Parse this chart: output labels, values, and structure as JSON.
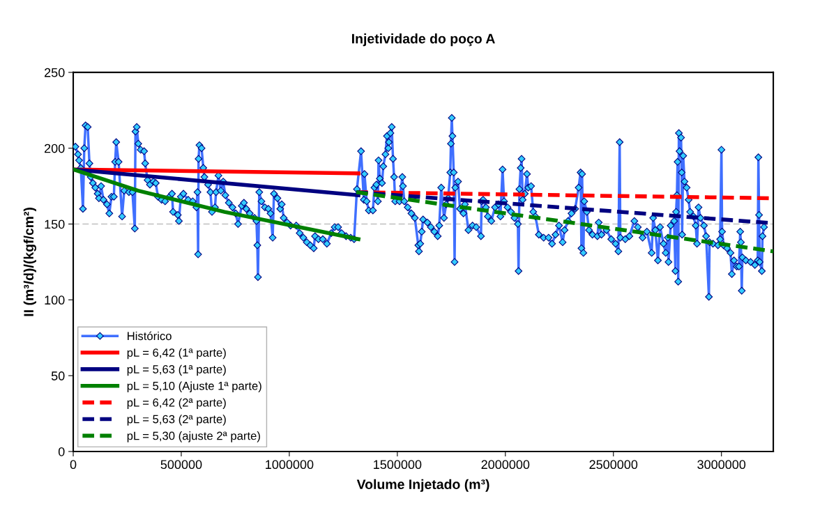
{
  "chart_data": {
    "type": "line",
    "title": "Injetividade do poço A",
    "xlabel": "Volume Injetado (m³)",
    "ylabel": "II (m³/d)/(kgf/cm²)",
    "xlim": [
      0,
      3240000
    ],
    "xticks": [
      0,
      500000,
      1000000,
      1500000,
      2000000,
      2500000,
      3000000
    ],
    "ylim": [
      0,
      250
    ],
    "yticks": [
      0,
      50,
      100,
      150,
      200,
      250
    ],
    "grid": false,
    "legend": "bottom left",
    "ref_lines": [
      {
        "axis": "y",
        "value": 150,
        "color": "#a6a6a6",
        "line_style": "dashed"
      }
    ],
    "series": [
      {
        "name": "Histórico",
        "color": "#3f6fff",
        "marker": "diamond",
        "line_style": "solid",
        "x": [
          10000,
          22000,
          27000,
          35000,
          45000,
          51000,
          57000,
          67000,
          75000,
          81000,
          91000,
          102000,
          113000,
          119000,
          129000,
          140000,
          156000,
          167000,
          177000,
          188000,
          194000,
          199000,
          210000,
          226000,
          236000,
          258000,
          274000,
          285000,
          288000,
          294000,
          301000,
          312000,
          328000,
          333000,
          344000,
          355000,
          371000,
          382000,
          392000,
          409000,
          425000,
          445000,
          457000,
          462000,
          484000,
          489000,
          498000,
          510000,
          532000,
          553000,
          570000,
          575000,
          578000,
          580000,
          584000,
          594000,
          602000,
          607000,
          624000,
          635000,
          642000,
          656000,
          661000,
          672000,
          683000,
          694000,
          704000,
          720000,
          737000,
          752000,
          763000,
          780000,
          790000,
          801000,
          817000,
          839000,
          848000,
          852000,
          855000,
          861000,
          871000,
          887000,
          903000,
          913000,
          923000,
          929000,
          945000,
          958000,
          965000,
          974000,
          990000,
          1006000,
          1032000,
          1048000,
          1065000,
          1081000,
          1097000,
          1113000,
          1119000,
          1135000,
          1155000,
          1174000,
          1194000,
          1210000,
          1226000,
          1242000,
          1263000,
          1284000,
          1300000,
          1313000,
          1332000,
          1345000,
          1348000,
          1358000,
          1368000,
          1387000,
          1394000,
          1403000,
          1410000,
          1413000,
          1419000,
          1429000,
          1435000,
          1445000,
          1452000,
          1458000,
          1461000,
          1468000,
          1474000,
          1480000,
          1485000,
          1490000,
          1510000,
          1523000,
          1526000,
          1532000,
          1548000,
          1565000,
          1581000,
          1597000,
          1600000,
          1606000,
          1613000,
          1619000,
          1639000,
          1655000,
          1671000,
          1687000,
          1694000,
          1703000,
          1716000,
          1726000,
          1735000,
          1745000,
          1748000,
          1752000,
          1755000,
          1761000,
          1765000,
          1768000,
          1781000,
          1790000,
          1806000,
          1813000,
          1829000,
          1848000,
          1865000,
          1887000,
          1890000,
          1897000,
          1910000,
          1919000,
          1935000,
          1952000,
          1968000,
          1977000,
          1987000,
          1994000,
          2010000,
          2026000,
          2042000,
          2058000,
          2061000,
          2065000,
          2071000,
          2075000,
          2080000,
          2090000,
          2100000,
          2106000,
          2119000,
          2129000,
          2139000,
          2155000,
          2177000,
          2200000,
          2216000,
          2232000,
          2248000,
          2265000,
          2274000,
          2290000,
          2306000,
          2323000,
          2339000,
          2348000,
          2352000,
          2355000,
          2361000,
          2365000,
          2377000,
          2387000,
          2403000,
          2426000,
          2432000,
          2445000,
          2468000,
          2490000,
          2510000,
          2523000,
          2529000,
          2532000,
          2555000,
          2574000,
          2597000,
          2613000,
          2635000,
          2655000,
          2677000,
          2684000,
          2694000,
          2706000,
          2716000,
          2732000,
          2742000,
          2752000,
          2755000,
          2765000,
          2781000,
          2787000,
          2790000,
          2794000,
          2797000,
          2800000,
          2803000,
          2806000,
          2813000,
          2816000,
          2818000,
          2823000,
          2829000,
          2839000,
          2848000,
          2855000,
          2871000,
          2881000,
          2887000,
          2894000,
          2903000,
          2919000,
          2929000,
          2942000,
          2945000,
          2961000,
          2984000,
          2994000,
          3000000,
          3003000,
          3010000,
          3026000,
          3042000,
          3048000,
          3058000,
          3071000,
          3081000,
          3087000,
          3090000,
          3094000,
          3097000,
          3113000,
          3135000,
          3155000,
          3168000,
          3171000,
          3174000,
          3177000,
          3187000,
          3190000,
          3197000
        ],
        "values": [
          201,
          196,
          192,
          187,
          160,
          200,
          215,
          214,
          190,
          181,
          177,
          174,
          170,
          167,
          175,
          166,
          163,
          157,
          168,
          168,
          191,
          204,
          191,
          155,
          172,
          171,
          171,
          147,
          211,
          214,
          203,
          199,
          198,
          190,
          179,
          176,
          178,
          177,
          168,
          166,
          165,
          168,
          170,
          158,
          156,
          152,
          168,
          170,
          166,
          165,
          161,
          171,
          130,
          193,
          202,
          200,
          187,
          181,
          176,
          171,
          158,
          161,
          171,
          182,
          172,
          178,
          169,
          164,
          161,
          157,
          150,
          162,
          164,
          160,
          157,
          154,
          152,
          136,
          115,
          171,
          165,
          161,
          160,
          157,
          141,
          170,
          167,
          160,
          163,
          154,
          151,
          149,
          149,
          144,
          141,
          138,
          136,
          134,
          142,
          140,
          140,
          137,
          144,
          148,
          148,
          144,
          142,
          141,
          140,
          173,
          198,
          166,
          183,
          165,
          159,
          159,
          174,
          176,
          165,
          192,
          180,
          177,
          188,
          196,
          208,
          200,
          204,
          210,
          214,
          193,
          181,
          165,
          165,
          181,
          175,
          165,
          161,
          157,
          154,
          136,
          132,
          137,
          145,
          153,
          151,
          148,
          145,
          142,
          149,
          174,
          154,
          163,
          167,
          184,
          203,
          220,
          208,
          184,
          125,
          174,
          178,
          160,
          157,
          163,
          146,
          149,
          148,
          142,
          165,
          166,
          161,
          155,
          152,
          161,
          163,
          155,
          186,
          165,
          161,
          158,
          154,
          150,
          119,
          173,
          187,
          193,
          166,
          170,
          183,
          174,
          175,
          158,
          155,
          143,
          141,
          141,
          137,
          143,
          149,
          138,
          146,
          152,
          157,
          160,
          174,
          184,
          134,
          183,
          131,
          165,
          158,
          146,
          143,
          142,
          151,
          143,
          146,
          140,
          137,
          132,
          204,
          141,
          140,
          142,
          152,
          148,
          141,
          145,
          131,
          154,
          146,
          126,
          148,
          137,
          131,
          141,
          125,
          149,
          152,
          119,
          158,
          169,
          191,
          112,
          210,
          198,
          207,
          184,
          143,
          195,
          178,
          174,
          166,
          158,
          155,
          149,
          137,
          161,
          154,
          149,
          142,
          102,
          138,
          137,
          136,
          140,
          199,
          145,
          136,
          134,
          131,
          117,
          126,
          122,
          122,
          145,
          138,
          106,
          128,
          126,
          125,
          123,
          126,
          194,
          156,
          125,
          119,
          142,
          148
        ]
      },
      {
        "name": "pL = 6,42 (1ª parte)",
        "color": "#ff0000",
        "line_style": "solid",
        "x": [
          0,
          1320000
        ],
        "values": [
          186,
          183.4
        ]
      },
      {
        "name": "pL = 5,63 (1ª parte)",
        "color": "#000080",
        "line_style": "solid",
        "x": [
          0,
          1320000
        ],
        "values": [
          186,
          169
        ]
      },
      {
        "name": "pL = 5,10 (Ajuste 1ª parte)",
        "color": "#008000",
        "line_style": "solid",
        "x": [
          0,
          300000,
          700000,
          1320000
        ],
        "values": [
          186,
          172,
          158,
          140
        ]
      },
      {
        "name": "pL = 6,42 (2ª parte)",
        "color": "#ff0000",
        "line_style": "dashed",
        "x": [
          1310000,
          3240000
        ],
        "values": [
          171,
          167
        ]
      },
      {
        "name": "pL = 5,63 (2ª parte)",
        "color": "#000080",
        "line_style": "dashed",
        "x": [
          1310000,
          3240000
        ],
        "values": [
          171,
          150.5
        ]
      },
      {
        "name": "pL = 5,30 (ajuste 2ª parte)",
        "color": "#008000",
        "line_style": "dashed",
        "x": [
          1310000,
          3240000
        ],
        "values": [
          171,
          132
        ]
      }
    ]
  }
}
